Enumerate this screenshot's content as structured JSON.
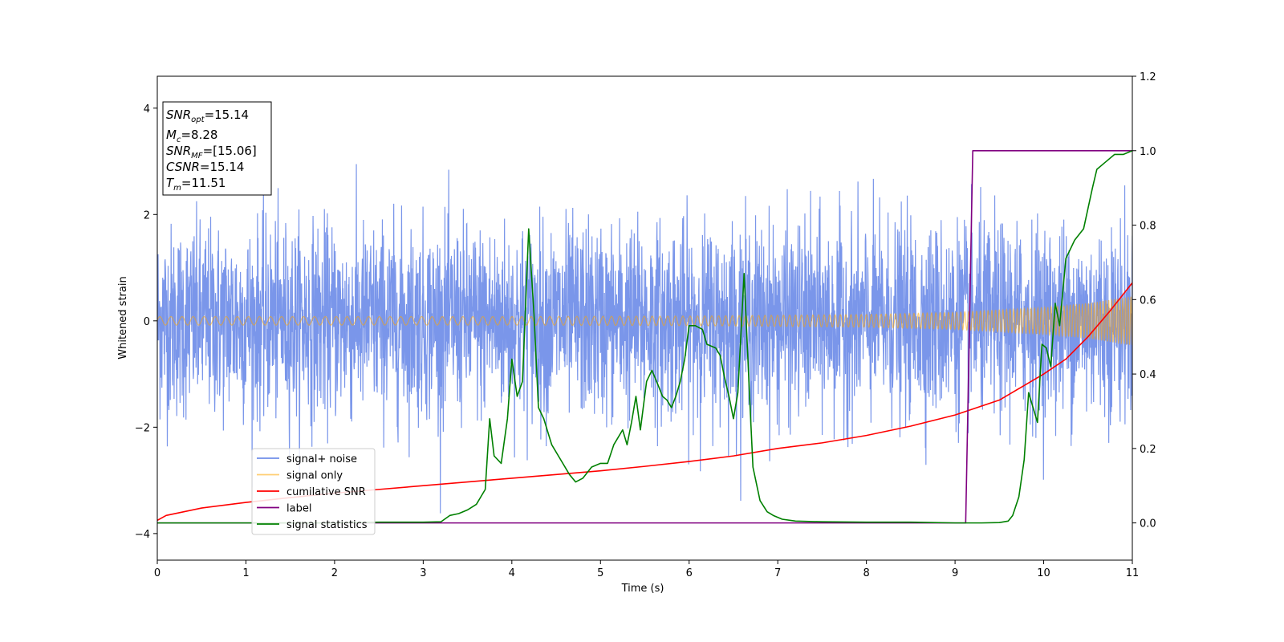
{
  "chart_data": {
    "type": "line",
    "xlabel": "Time (s)",
    "ylabel": "Whitened strain",
    "xlim": [
      0,
      11
    ],
    "ylim": [
      -4.5,
      4.6
    ],
    "y2lim": [
      -0.1,
      1.2
    ],
    "x_ticks": [
      0,
      1,
      2,
      3,
      4,
      5,
      6,
      7,
      8,
      9,
      10,
      11
    ],
    "y_ticks": [
      -4,
      -2,
      0,
      2,
      4
    ],
    "y2_ticks": [
      0.0,
      0.2,
      0.4,
      0.6,
      0.8,
      1.0,
      1.2
    ],
    "grid": false,
    "legend_placement": "lower-left",
    "annotation": {
      "lines": [
        {
          "sym": "SNR",
          "sub": "opt",
          "val": "=15.14"
        },
        {
          "sym": "M",
          "sub": "c",
          "val": "=8.28"
        },
        {
          "sym": "SNR",
          "sub": "MF",
          "val": "=[15.06]"
        },
        {
          "sym": "CSNR",
          "sub": "",
          "val": "=15.14"
        },
        {
          "sym": "T",
          "sub": "m",
          "val": "=11.51"
        }
      ]
    },
    "series": [
      {
        "name": "signal+ noise",
        "axis": "left",
        "color": "#4169e1",
        "kind": "noise",
        "amplitude_sigma": 0.9,
        "x_range": [
          0,
          11
        ]
      },
      {
        "name": "signal only",
        "axis": "left",
        "color": "#ffa500",
        "kind": "chirp",
        "envelope": {
          "x": [
            0,
            2,
            4,
            6,
            8,
            9,
            10,
            10.5,
            11
          ],
          "y": [
            0.08,
            0.08,
            0.08,
            0.09,
            0.12,
            0.16,
            0.25,
            0.33,
            0.46
          ]
        }
      },
      {
        "name": "cumilative SNR",
        "axis": "right",
        "color": "#ff0000",
        "x": [
          0,
          0.1,
          0.3,
          0.5,
          1,
          1.5,
          2,
          2.5,
          3,
          3.5,
          4,
          4.5,
          5,
          5.5,
          6,
          6.5,
          7,
          7.5,
          8,
          8.5,
          9,
          9.5,
          10,
          10.25,
          10.5,
          10.75,
          11
        ],
        "y": [
          0.007,
          0.02,
          0.03,
          0.04,
          0.055,
          0.068,
          0.08,
          0.09,
          0.1,
          0.11,
          0.12,
          0.13,
          0.14,
          0.152,
          0.165,
          0.18,
          0.2,
          0.215,
          0.235,
          0.26,
          0.29,
          0.33,
          0.4,
          0.44,
          0.5,
          0.57,
          0.645
        ]
      },
      {
        "name": "label",
        "axis": "right",
        "color": "#800080",
        "x": [
          0,
          9.12,
          9.2,
          11
        ],
        "y": [
          0,
          0,
          1,
          1
        ]
      },
      {
        "name": "signal statistics",
        "axis": "right",
        "color": "#008000",
        "x": [
          0,
          1,
          2,
          2.5,
          3,
          3.2,
          3.3,
          3.4,
          3.5,
          3.6,
          3.65,
          3.7,
          3.75,
          3.8,
          3.88,
          3.95,
          4.0,
          4.06,
          4.12,
          4.19,
          4.25,
          4.3,
          4.36,
          4.45,
          4.55,
          4.65,
          4.72,
          4.8,
          4.9,
          5.0,
          5.08,
          5.15,
          5.25,
          5.3,
          5.35,
          5.4,
          5.45,
          5.52,
          5.58,
          5.65,
          5.7,
          5.75,
          5.8,
          5.85,
          5.9,
          5.95,
          6.0,
          6.07,
          6.15,
          6.2,
          6.3,
          6.35,
          6.4,
          6.45,
          6.5,
          6.55,
          6.62,
          6.68,
          6.72,
          6.8,
          6.88,
          6.95,
          7.05,
          7.2,
          7.5,
          8.0,
          8.5,
          9.0,
          9.3,
          9.5,
          9.6,
          9.65,
          9.72,
          9.78,
          9.83,
          9.88,
          9.93,
          9.98,
          10.03,
          10.08,
          10.13,
          10.18,
          10.25,
          10.35,
          10.45,
          10.55,
          10.6,
          10.7,
          10.8,
          10.9,
          11.0
        ],
        "y": [
          0,
          0,
          0.0,
          0.002,
          0.002,
          0.003,
          0.02,
          0.025,
          0.035,
          0.05,
          0.07,
          0.09,
          0.28,
          0.18,
          0.16,
          0.28,
          0.44,
          0.34,
          0.38,
          0.79,
          0.56,
          0.31,
          0.28,
          0.21,
          0.17,
          0.13,
          0.11,
          0.12,
          0.15,
          0.16,
          0.16,
          0.21,
          0.25,
          0.21,
          0.27,
          0.34,
          0.25,
          0.38,
          0.41,
          0.37,
          0.34,
          0.33,
          0.31,
          0.34,
          0.38,
          0.44,
          0.53,
          0.53,
          0.52,
          0.48,
          0.47,
          0.45,
          0.39,
          0.34,
          0.28,
          0.35,
          0.67,
          0.35,
          0.15,
          0.06,
          0.03,
          0.02,
          0.01,
          0.005,
          0.003,
          0.002,
          0.002,
          0.0,
          0.0,
          0.001,
          0.005,
          0.02,
          0.07,
          0.17,
          0.35,
          0.31,
          0.27,
          0.48,
          0.47,
          0.42,
          0.59,
          0.53,
          0.71,
          0.76,
          0.79,
          0.9,
          0.95,
          0.97,
          0.99,
          0.99,
          1.0
        ]
      }
    ]
  }
}
